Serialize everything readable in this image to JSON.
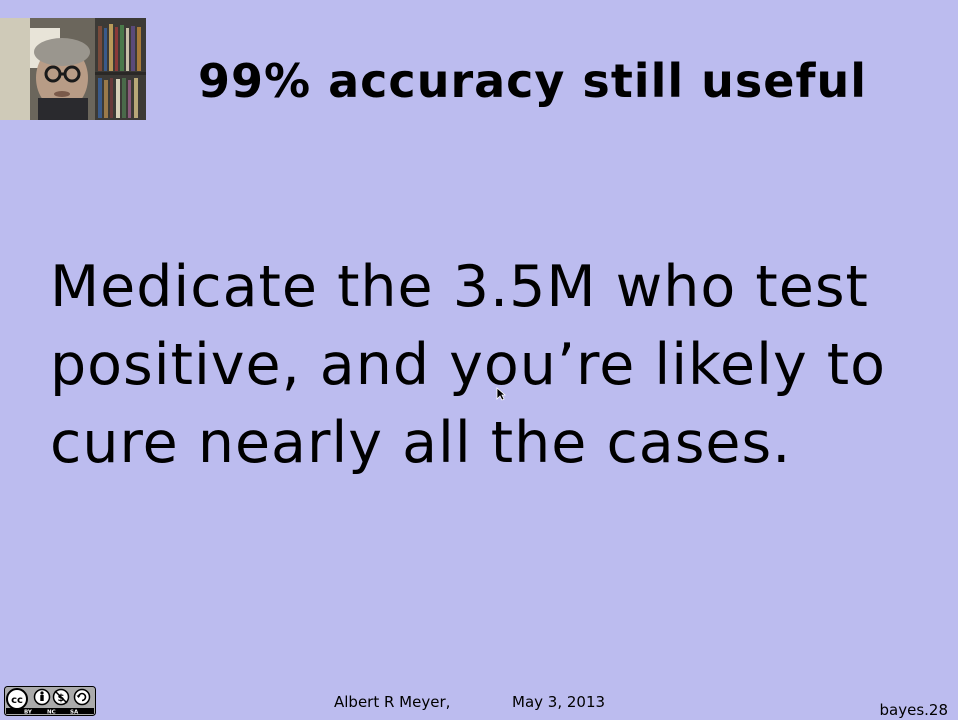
{
  "slide": {
    "title": "99% accuracy still useful",
    "body_lines": [
      "Medicate the 3.5M who test",
      "positive, and you’re likely to",
      "cure nearly all the cases."
    ]
  },
  "footer": {
    "author": "Albert R Meyer,",
    "date": "May 3, 2013",
    "slide_id": "bayes.28"
  },
  "license": {
    "badge_label_left": "BY",
    "badge_label_mid": "NC",
    "badge_label_right": "SA"
  },
  "colors": {
    "background": "#bcbcef",
    "text": "#000000"
  }
}
